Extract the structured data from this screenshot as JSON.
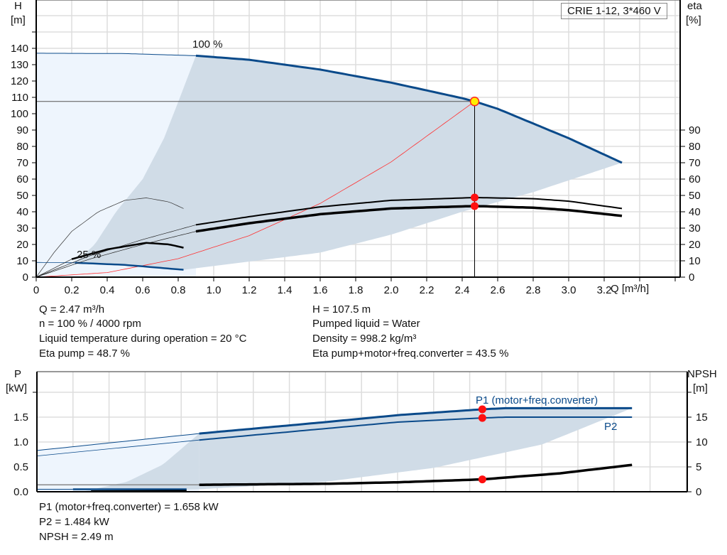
{
  "chart_data": [
    {
      "type": "line",
      "title": "CRIE 1-12, 3*460 V",
      "xlabel": "Q [m³/h]",
      "ylabel_left": [
        "H",
        "[m]"
      ],
      "ylabel_right": [
        "eta",
        "[%]"
      ],
      "xlim": [
        0,
        3.6
      ],
      "ylim": [
        0,
        160
      ],
      "x_ticks": [
        "0",
        "0.2",
        "0.4",
        "0.6",
        "0.8",
        "1.0",
        "1.2",
        "1.4",
        "1.6",
        "1.8",
        "2.0",
        "2.2",
        "2.4",
        "2.6",
        "2.8",
        "3.0",
        "3.2"
      ],
      "y_ticks_left": [
        "0",
        "10",
        "20",
        "30",
        "40",
        "50",
        "60",
        "70",
        "80",
        "90",
        "100",
        "110",
        "120",
        "130",
        "140"
      ],
      "y_ticks_right": [
        "0",
        "10",
        "20",
        "30",
        "40",
        "50",
        "60",
        "70",
        "80",
        "90"
      ],
      "grid": true,
      "annotations": [
        "100 %",
        "25 %"
      ],
      "series": [
        {
          "id": "h-100",
          "label": "100 %",
          "color": "#0a4a8a",
          "points": [
            [
              0,
              137
            ],
            [
              0.5,
              136.8
            ],
            [
              0.9,
              135.5
            ],
            [
              1.2,
              133
            ],
            [
              1.6,
              127
            ],
            [
              2.0,
              119
            ],
            [
              2.4,
              109.5
            ],
            [
              2.47,
              107.5
            ],
            [
              2.6,
              103
            ],
            [
              2.8,
              94
            ],
            [
              3.0,
              85
            ],
            [
              3.3,
              70
            ]
          ]
        },
        {
          "id": "h-25",
          "label": "25 %",
          "color": "#0a4a8a",
          "points": [
            [
              0,
              9
            ],
            [
              0.22,
              8.8
            ],
            [
              0.5,
              7.5
            ],
            [
              0.83,
              4.5
            ]
          ]
        },
        {
          "id": "eta-pump-100",
          "color": "#000000",
          "points": [
            [
              0,
              0
            ],
            [
              0.3,
              13
            ],
            [
              0.6,
              23
            ],
            [
              0.9,
              32
            ],
            [
              1.2,
              37
            ],
            [
              1.6,
              43
            ],
            [
              2.0,
              47
            ],
            [
              2.47,
              48.7
            ],
            [
              2.8,
              48
            ],
            [
              3.0,
              46.5
            ],
            [
              3.3,
              42
            ]
          ]
        },
        {
          "id": "eta-total-100",
          "color": "#000000",
          "points": [
            [
              0,
              0
            ],
            [
              0.3,
              11
            ],
            [
              0.6,
              20
            ],
            [
              0.9,
              28
            ],
            [
              1.2,
              33
            ],
            [
              1.6,
              38.5
            ],
            [
              2.0,
              42
            ],
            [
              2.47,
              43.5
            ],
            [
              2.8,
              42.5
            ],
            [
              3.0,
              41
            ],
            [
              3.3,
              37.5
            ]
          ]
        },
        {
          "id": "eta-pump-25",
          "color": "#000000",
          "points": [
            [
              0,
              0
            ],
            [
              0.1,
              15
            ],
            [
              0.2,
              28
            ],
            [
              0.35,
              40
            ],
            [
              0.5,
              47
            ],
            [
              0.62,
              48.5
            ],
            [
              0.75,
              46
            ],
            [
              0.83,
              42
            ]
          ]
        },
        {
          "id": "eta-total-25",
          "color": "#000000",
          "points": [
            [
              0,
              0
            ],
            [
              0.2,
              11
            ],
            [
              0.4,
              17
            ],
            [
              0.62,
              21
            ],
            [
              0.75,
              20
            ],
            [
              0.83,
              18
            ]
          ]
        },
        {
          "id": "system-curve",
          "color": "#ff2020",
          "points": [
            [
              0,
              0
            ],
            [
              0.4,
              2.8
            ],
            [
              0.8,
              11.3
            ],
            [
              1.2,
              25.4
            ],
            [
              1.6,
              45.1
            ],
            [
              2.0,
              70.5
            ],
            [
              2.47,
              107.5
            ]
          ]
        }
      ],
      "duty_point": {
        "Q": 2.47,
        "H": 107.5,
        "eta_pump": 48.7,
        "eta_total": 43.5
      }
    },
    {
      "type": "line",
      "ylabel_left": [
        "P",
        "[kW]"
      ],
      "ylabel_right": [
        "NPSH",
        "[m]"
      ],
      "xlim": [
        0,
        3.6
      ],
      "ylim": [
        0,
        2.0
      ],
      "y_ticks_left": [
        "0.0",
        "0.5",
        "1.0",
        "1.5"
      ],
      "y_ticks_right": [
        "0",
        "5",
        "10",
        "15"
      ],
      "grid": true,
      "series": [
        {
          "id": "p1",
          "label": "P1 (motor+freq.converter)",
          "color": "#0a4a8a",
          "points": [
            [
              0,
              0.83
            ],
            [
              0.9,
              1.17
            ],
            [
              1.6,
              1.4
            ],
            [
              2.0,
              1.54
            ],
            [
              2.47,
              1.658
            ],
            [
              2.6,
              1.68
            ],
            [
              3.3,
              1.68
            ]
          ]
        },
        {
          "id": "p2",
          "label": "P2",
          "color": "#0a4a8a",
          "points": [
            [
              0,
              0.72
            ],
            [
              0.9,
              1.04
            ],
            [
              1.6,
              1.27
            ],
            [
              2.0,
              1.4
            ],
            [
              2.47,
              1.484
            ],
            [
              2.6,
              1.5
            ],
            [
              3.3,
              1.5
            ]
          ]
        },
        {
          "id": "npsh",
          "color": "#000000",
          "unit": "m",
          "points": [
            [
              0,
              1.4
            ],
            [
              0.9,
              1.4
            ],
            [
              1.6,
              1.6
            ],
            [
              2.0,
              1.9
            ],
            [
              2.47,
              2.49
            ],
            [
              2.9,
              3.7
            ],
            [
              3.3,
              5.4
            ]
          ]
        },
        {
          "id": "p1-25",
          "color": "#0a4a8a",
          "points": [
            [
              0,
              0.05
            ],
            [
              0.2,
              0.05
            ],
            [
              0.83,
              0.05
            ]
          ]
        }
      ],
      "duty_point": {
        "Q": 2.47,
        "P1": 1.658,
        "P2": 1.484,
        "NPSH": 2.49
      }
    }
  ],
  "info": {
    "left": [
      "Q = 2.47 m³/h",
      "n = 100 % / 4000 rpm",
      "Liquid temperature during operation = 20 °C",
      "Eta pump = 48.7 %"
    ],
    "right": [
      "H = 107.5 m",
      "Pumped liquid = Water",
      "Density = 998.2 kg/m³",
      "Eta pump+motor+freq.converter = 43.5 %"
    ],
    "bottom": [
      "P1 (motor+freq.converter) = 1.658 kW",
      "P2 = 1.484 kW",
      "NPSH = 2.49 m"
    ]
  }
}
